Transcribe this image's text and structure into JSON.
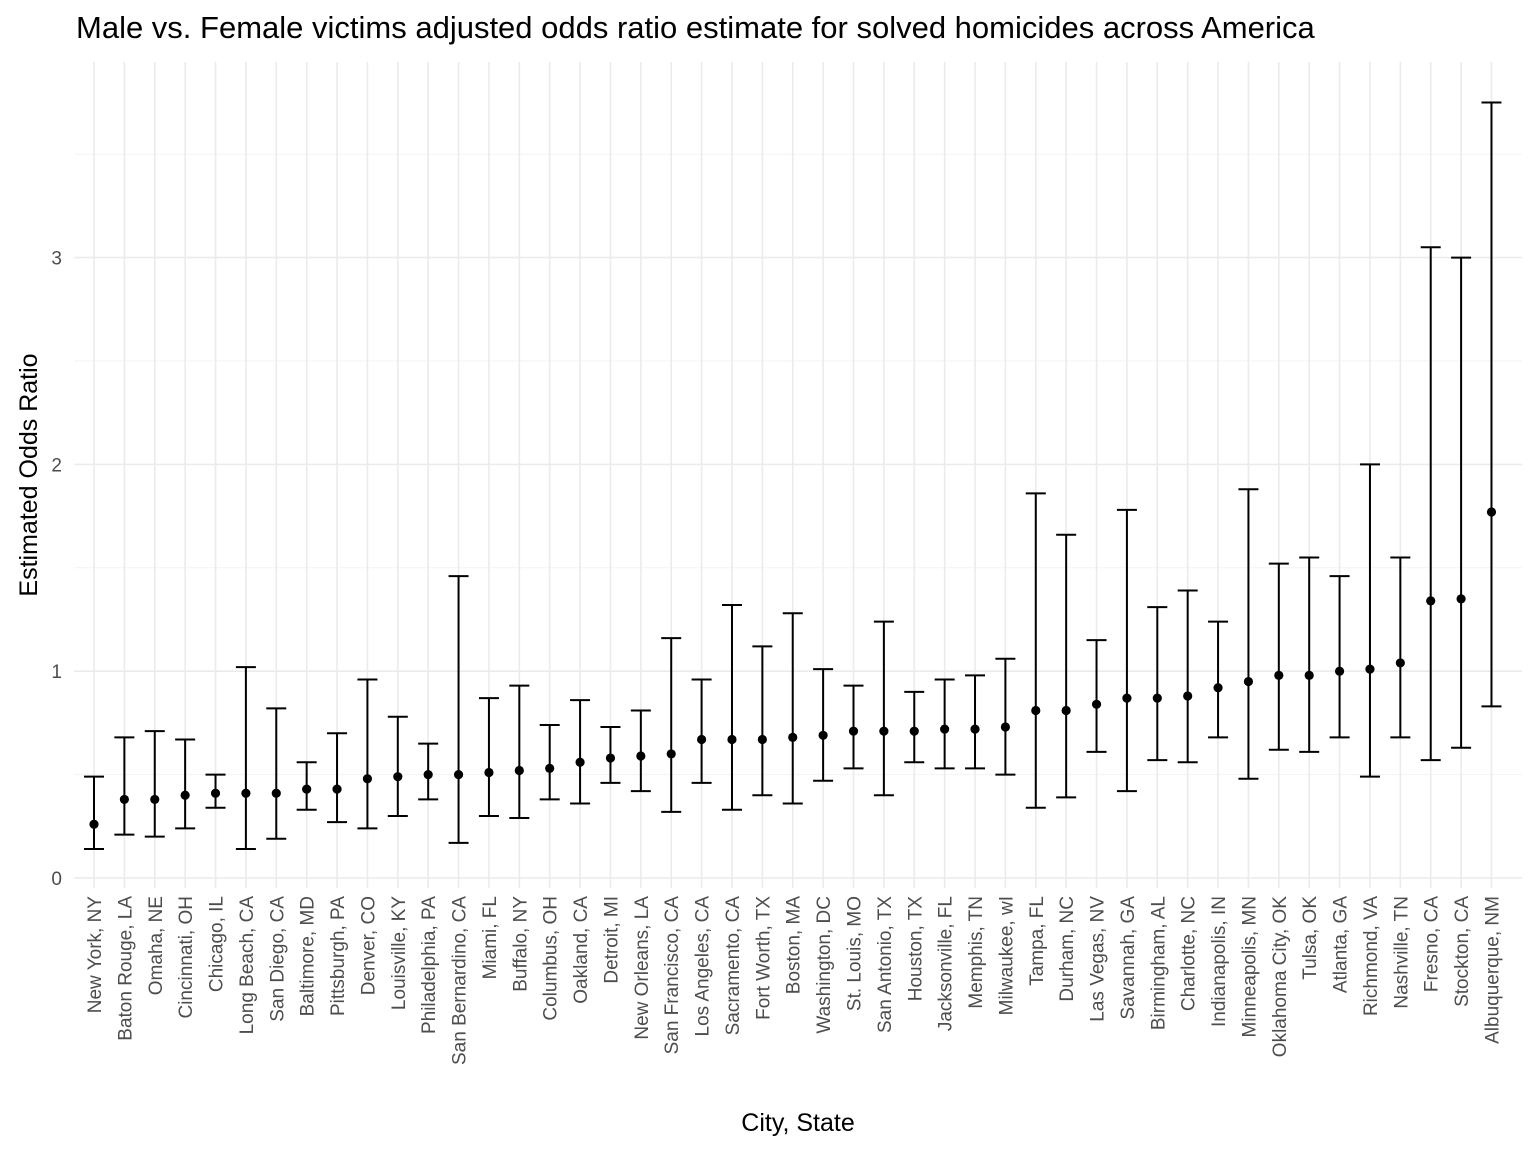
{
  "chart_data": {
    "type": "scatter",
    "title": "Male vs. Female victims adjusted odds ratio estimate for solved homicides across America",
    "xlabel": "City, State",
    "ylabel": "Estimated Odds Ratio",
    "ylim": [
      0,
      3.8
    ],
    "yticks": [
      0,
      1,
      2,
      3
    ],
    "grid": true,
    "legend": "none",
    "categories": [
      "New York, NY",
      "Baton Rouge, LA",
      "Omaha, NE",
      "Cincinnati, OH",
      "Chicago, IL",
      "Long Beach, CA",
      "San Diego, CA",
      "Baltimore, MD",
      "Pittsburgh, PA",
      "Denver, CO",
      "Louisville, KY",
      "Philadelphia, PA",
      "San Bernardino, CA",
      "Miami, FL",
      "Buffalo, NY",
      "Columbus, OH",
      "Oakland, CA",
      "Detroit, MI",
      "New Orleans, LA",
      "San Francisco, CA",
      "Los Angeles, CA",
      "Sacramento, CA",
      "Fort Worth, TX",
      "Boston, MA",
      "Washington, DC",
      "St. Louis, MO",
      "San Antonio, TX",
      "Houston, TX",
      "Jacksonville, FL",
      "Memphis, TN",
      "Milwaukee, wI",
      "Tampa, FL",
      "Durham, NC",
      "Las Vegas, NV",
      "Savannah, GA",
      "Birmingham, AL",
      "Charlotte, NC",
      "Indianapolis, IN",
      "Minneapolis, MN",
      "Oklahoma City, OK",
      "Tulsa, OK",
      "Atlanta, GA",
      "Richmond, VA",
      "Nashville, TN",
      "Fresno, CA",
      "Stockton, CA",
      "Albuquerque, NM"
    ],
    "estimate": [
      0.26,
      0.38,
      0.38,
      0.4,
      0.41,
      0.41,
      0.41,
      0.43,
      0.43,
      0.48,
      0.49,
      0.5,
      0.5,
      0.51,
      0.52,
      0.53,
      0.56,
      0.58,
      0.59,
      0.6,
      0.67,
      0.67,
      0.67,
      0.68,
      0.69,
      0.71,
      0.71,
      0.71,
      0.72,
      0.72,
      0.73,
      0.81,
      0.81,
      0.84,
      0.87,
      0.87,
      0.88,
      0.92,
      0.95,
      0.98,
      0.98,
      1.0,
      1.01,
      1.04,
      1.34,
      1.35,
      1.77
    ],
    "ci_low": [
      0.14,
      0.21,
      0.2,
      0.24,
      0.34,
      0.14,
      0.19,
      0.33,
      0.27,
      0.24,
      0.3,
      0.38,
      0.17,
      0.3,
      0.29,
      0.38,
      0.36,
      0.46,
      0.42,
      0.32,
      0.46,
      0.33,
      0.4,
      0.36,
      0.47,
      0.53,
      0.4,
      0.56,
      0.53,
      0.53,
      0.5,
      0.34,
      0.39,
      0.61,
      0.42,
      0.57,
      0.56,
      0.68,
      0.48,
      0.62,
      0.61,
      0.68,
      0.49,
      0.68,
      0.57,
      0.63,
      0.83
    ],
    "ci_high": [
      0.49,
      0.68,
      0.71,
      0.67,
      0.5,
      1.02,
      0.82,
      0.56,
      0.7,
      0.96,
      0.78,
      0.65,
      1.46,
      0.87,
      0.93,
      0.74,
      0.86,
      0.73,
      0.81,
      1.16,
      0.96,
      1.32,
      1.12,
      1.28,
      1.01,
      0.93,
      1.24,
      0.9,
      0.96,
      0.98,
      1.06,
      1.86,
      1.66,
      1.15,
      1.78,
      1.31,
      1.39,
      1.24,
      1.88,
      1.52,
      1.55,
      1.46,
      2.0,
      1.55,
      3.05,
      3.0,
      3.75
    ]
  }
}
